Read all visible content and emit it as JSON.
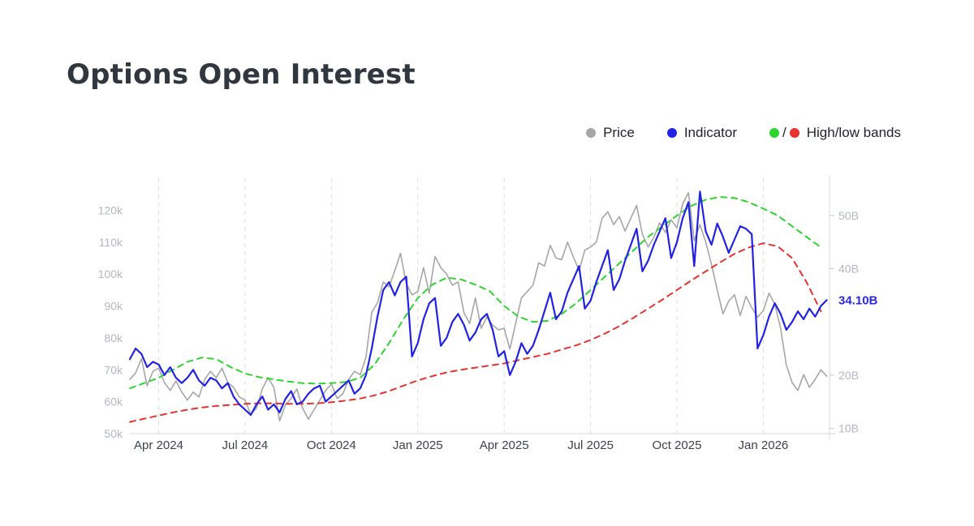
{
  "header": {
    "title": "Options Open Interest"
  },
  "legend": {
    "price": "Price",
    "indicator": "Indicator",
    "separator": "/",
    "bands": "High/low bands"
  },
  "chart_data": {
    "type": "line",
    "title": "Options Open Interest",
    "legend_position": "top-right",
    "grid": {
      "vertical_dashed": true,
      "horizontal": false
    },
    "x_axis": {
      "unit": "months since 2024-03-01",
      "range": [
        0,
        24.3
      ],
      "ticks": [
        {
          "x": 1,
          "label": "Apr 2024"
        },
        {
          "x": 4,
          "label": "Jul 2024"
        },
        {
          "x": 7,
          "label": "Oct 2024"
        },
        {
          "x": 10,
          "label": "Jan 2025"
        },
        {
          "x": 13,
          "label": "Apr 2025"
        },
        {
          "x": 16,
          "label": "Jul 2025"
        },
        {
          "x": 19,
          "label": "Oct 2025"
        },
        {
          "x": 22,
          "label": "Jan 2026"
        }
      ]
    },
    "left_axis": {
      "title": "Price (USD thousands)",
      "range": [
        50,
        130
      ],
      "ticks": [
        {
          "value": 50,
          "label": "50k"
        },
        {
          "value": 60,
          "label": "60k"
        },
        {
          "value": 70,
          "label": "70k"
        },
        {
          "value": 80,
          "label": "80k"
        },
        {
          "value": 90,
          "label": "90k"
        },
        {
          "value": 100,
          "label": "100k"
        },
        {
          "value": 110,
          "label": "110k"
        },
        {
          "value": 120,
          "label": "120k"
        }
      ]
    },
    "right_axis": {
      "title": "Open interest (USD billions)",
      "range": [
        9,
        57
      ],
      "ticks": [
        {
          "value": 10,
          "label": "10B"
        },
        {
          "value": 20,
          "label": "20B"
        },
        {
          "value": 40,
          "label": "40B"
        },
        {
          "value": 50,
          "label": "50B"
        }
      ],
      "last_value": {
        "value": 34.1,
        "text": "34.10B",
        "color": "#2a2ae2"
      }
    },
    "series": [
      {
        "name": "Price",
        "axis": "left",
        "color": "#a6a6a6",
        "style": "solid",
        "width": 1.6,
        "x0": 0,
        "dx": 0.2,
        "values": [
          67,
          69,
          73.5,
          65,
          69.5,
          70.5,
          66,
          63.5,
          66.5,
          63,
          60.5,
          63,
          61.5,
          67,
          69.5,
          67.5,
          70.5,
          66,
          64.5,
          61.5,
          60.5,
          56,
          58,
          64,
          67.5,
          64.5,
          54,
          59,
          61,
          64,
          58,
          54.5,
          57.5,
          60.5,
          63.5,
          65.5,
          61,
          62.5,
          67,
          69.5,
          68.5,
          74,
          88,
          91,
          97.5,
          96,
          101,
          106.5,
          97,
          93.5,
          94.5,
          102,
          94,
          105.5,
          102,
          100,
          96.5,
          97.5,
          88,
          84.5,
          92.5,
          83,
          86.5,
          84,
          82.5,
          83,
          76.5,
          84.5,
          92.5,
          94.5,
          96.5,
          103.5,
          102.5,
          109,
          105,
          104.5,
          110,
          105.5,
          101,
          107.5,
          108.5,
          110,
          117.5,
          119.5,
          115.5,
          118,
          113.5,
          117.5,
          121.5,
          112.5,
          108.5,
          111.5,
          116,
          113,
          117,
          114.5,
          122,
          125.5,
          110.5,
          115.5,
          110,
          103,
          95,
          87.5,
          91.5,
          93.5,
          87,
          93,
          89.5,
          86.5,
          88.5,
          94,
          90.5,
          83,
          71.5,
          66,
          63.5,
          68.5,
          64.5,
          67,
          70,
          68
        ]
      },
      {
        "name": "High band",
        "axis": "right",
        "color": "#2ed52e",
        "style": "dashed",
        "width": 2,
        "x0": 0,
        "dx": 0.5,
        "values": [
          17.5,
          18.5,
          19.5,
          21,
          22.5,
          23.3,
          23,
          21.5,
          20.3,
          19.6,
          19.2,
          18.8,
          18.5,
          18.4,
          18.5,
          18.7,
          19.5,
          22,
          26,
          30.5,
          34.5,
          37,
          38.3,
          38,
          37,
          35.8,
          33,
          31,
          30,
          30.2,
          31.5,
          33.5,
          36,
          38.5,
          41,
          43.5,
          46,
          48,
          50,
          51.8,
          53,
          53.5,
          53.3,
          52.5,
          51.3,
          50,
          48,
          46,
          44
        ]
      },
      {
        "name": "Low band",
        "axis": "right",
        "color": "#e83232",
        "style": "dashed",
        "width": 2,
        "x0": 0,
        "dx": 0.5,
        "values": [
          11.2,
          11.8,
          12.4,
          13,
          13.5,
          13.9,
          14.2,
          14.4,
          14.6,
          14.7,
          14.7,
          14.6,
          14.6,
          14.7,
          14.9,
          15.2,
          15.6,
          16.2,
          17,
          18,
          19,
          19.8,
          20.5,
          21,
          21.4,
          21.8,
          22.2,
          22.8,
          23.4,
          24,
          24.8,
          25.6,
          26.6,
          27.8,
          29.2,
          30.8,
          32.5,
          34.2,
          36,
          37.8,
          39.5,
          41.2,
          42.8,
          44,
          44.8,
          44.2,
          42,
          37.5,
          32
        ]
      },
      {
        "name": "Indicator",
        "axis": "right",
        "color": "#2222e4",
        "style": "solid",
        "width": 2.2,
        "x0": 0,
        "dx": 0.2,
        "values": [
          23,
          25,
          24,
          21.5,
          22.5,
          22,
          20,
          21.5,
          19.5,
          18.5,
          19.5,
          21,
          19,
          18,
          19.5,
          19,
          17.5,
          18.5,
          16,
          14.5,
          13.5,
          12.5,
          14.5,
          16,
          13.5,
          14.5,
          13,
          15.5,
          17,
          14.5,
          15,
          16.5,
          17.5,
          18,
          15,
          16,
          17,
          18,
          19,
          16.5,
          17.5,
          20,
          25,
          31,
          36,
          37.5,
          35,
          37.5,
          38.5,
          23.5,
          26,
          30.5,
          33.5,
          34.5,
          25.5,
          27,
          30,
          31.5,
          29.5,
          26.5,
          28,
          30.5,
          31.5,
          28.5,
          23.5,
          24.5,
          20,
          22.5,
          26,
          24,
          25.5,
          28.5,
          32,
          35.5,
          30.5,
          32,
          35.5,
          38,
          40.5,
          32.5,
          34,
          37.5,
          40.5,
          43.5,
          36,
          38,
          41.5,
          44.5,
          47.5,
          39.5,
          41.5,
          44.5,
          47,
          49.5,
          42,
          45,
          49.5,
          52.5,
          40.5,
          54.5,
          47,
          44.5,
          48.5,
          46,
          43,
          45.5,
          48,
          47.5,
          46.5,
          25,
          27.5,
          31,
          33.5,
          31.5,
          28.5,
          30,
          32,
          30.5,
          32.5,
          31,
          33,
          34.1
        ]
      }
    ]
  }
}
